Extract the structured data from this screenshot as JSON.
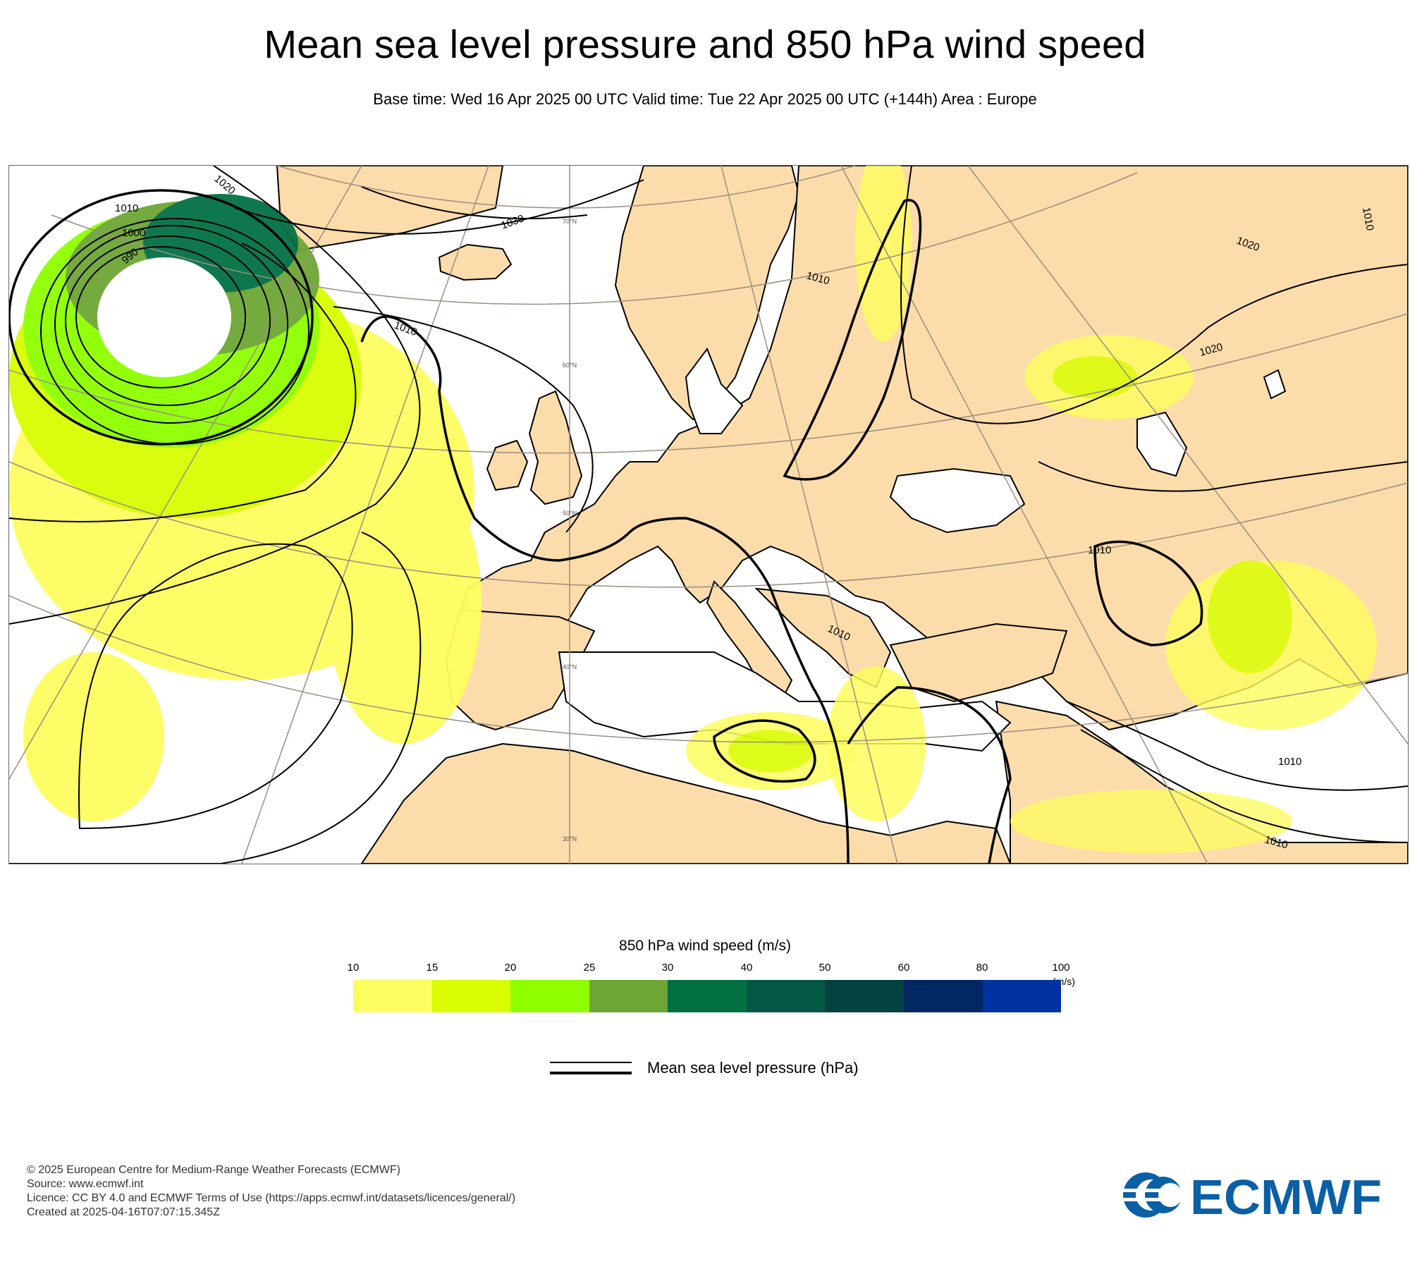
{
  "header": {
    "title": "Mean sea level pressure and 850 hPa wind speed",
    "subtitle": "Base time: Wed 16 Apr 2025 00 UTC Valid time: Tue 22 Apr 2025 00 UTC (+144h) Area : Europe"
  },
  "map": {
    "isobar_labels": [
      "1020",
      "1010",
      "1000",
      "990",
      "1030",
      "1010",
      "1010",
      "1020",
      "1010",
      "1020",
      "1010",
      "1010",
      "1010",
      "1010"
    ],
    "latitude_labels": [
      "70°N",
      "60°N",
      "50°N",
      "40°N",
      "30°N"
    ],
    "colors": {
      "land": "#fcdcaa",
      "sea": "#ffffff",
      "isobar": "#000000",
      "graticule": "#9a8f80"
    }
  },
  "legend": {
    "wind_title": "850 hPa wind speed (m/s)",
    "ticks": [
      "10",
      "15",
      "20",
      "25",
      "30",
      "40",
      "50",
      "60",
      "80",
      "100"
    ],
    "unit": "(m/s)",
    "colors": [
      "#fdfd5f",
      "#d9fc03",
      "#8fff00",
      "#6ea635",
      "#037044",
      "#045743",
      "#03423f",
      "#022763",
      "#0033a0"
    ],
    "mslp_label": "Mean sea level pressure (hPa)"
  },
  "footer": {
    "lines": [
      "© 2025 European Centre for Medium-Range Weather Forecasts (ECMWF)",
      "Source: www.ecmwf.int",
      "Licence: CC BY 4.0 and ECMWF Terms of Use (https://apps.ecmwf.int/datasets/licences/general/)",
      "Created at 2025-04-16T07:07:15.345Z"
    ]
  },
  "logo": {
    "text": "ECMWF",
    "color": "#0b5fa5"
  }
}
